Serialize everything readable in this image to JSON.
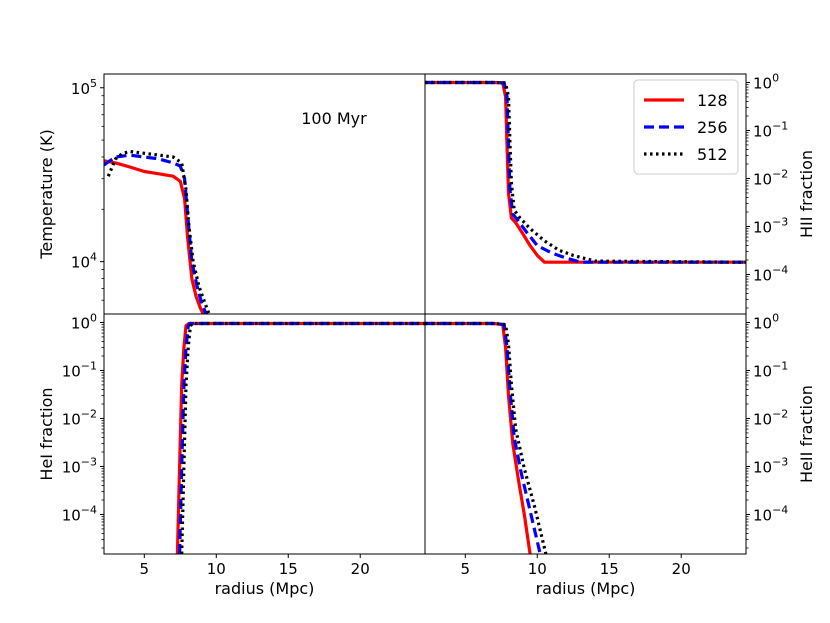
{
  "chart_data": [
    {
      "type": "line",
      "panel": "top-left",
      "ylabel": "Temperature (K)",
      "xlabel": "",
      "xlim": [
        2.2,
        24.5
      ],
      "ylim": [
        5000,
        120000
      ],
      "yscale": "log",
      "yticks": [
        {
          "v": 100000,
          "base": "10",
          "exp": "5"
        },
        {
          "v": 10000,
          "base": "10",
          "exp": "4"
        }
      ],
      "annotation": "100 Myr",
      "series": [
        {
          "name": "128",
          "x": [
            2.2,
            3.0,
            4.0,
            5.0,
            6.0,
            7.0,
            7.5,
            7.8,
            8.0,
            8.3,
            8.6,
            8.9,
            9.1
          ],
          "y": [
            38000,
            37000,
            35000,
            33000,
            32000,
            31000,
            29000,
            23000,
            14000,
            8000,
            6300,
            5400,
            5000
          ]
        },
        {
          "name": "256",
          "x": [
            2.2,
            3.0,
            4.0,
            5.0,
            6.0,
            7.0,
            7.5,
            7.8,
            8.0,
            8.3,
            8.7,
            9.0,
            9.3
          ],
          "y": [
            36000,
            40000,
            41000,
            40000,
            39000,
            37000,
            35500,
            30000,
            19000,
            10000,
            7000,
            5700,
            5000
          ]
        },
        {
          "name": "512",
          "x": [
            2.5,
            3.0,
            3.5,
            4.0,
            5.0,
            6.0,
            7.0,
            7.6,
            7.9,
            8.1,
            8.4,
            8.8,
            9.2,
            9.5
          ],
          "y": [
            31000,
            39000,
            42000,
            43000,
            42000,
            41000,
            40000,
            37000,
            26000,
            16000,
            10000,
            7200,
            5800,
            5000
          ]
        }
      ]
    },
    {
      "type": "line",
      "panel": "top-right",
      "ylabel": "HII fraction",
      "xlabel": "",
      "xlim": [
        2.2,
        24.5
      ],
      "ylim": [
        1.5e-05,
        1.5
      ],
      "yscale": "log",
      "yticks": [
        {
          "v": 1,
          "base": "10",
          "exp": "0"
        },
        {
          "v": 0.1,
          "base": "10",
          "exp": "−1"
        },
        {
          "v": 0.01,
          "base": "10",
          "exp": "−2"
        },
        {
          "v": 0.001,
          "base": "10",
          "exp": "−3"
        },
        {
          "v": 0.0001,
          "base": "10",
          "exp": "−4"
        }
      ],
      "legend_position": "top-right",
      "series": [
        {
          "name": "128",
          "x": [
            2.2,
            7.0,
            7.6,
            7.8,
            7.9,
            8.0,
            8.2,
            8.5,
            9.0,
            9.5,
            10.0,
            10.5,
            12,
            24.5
          ],
          "y": [
            1,
            1,
            0.98,
            0.5,
            0.05,
            0.005,
            0.0015,
            0.0012,
            0.0007,
            0.0004,
            0.00025,
            0.00018,
            0.00018,
            0.00018
          ]
        },
        {
          "name": "256",
          "x": [
            2.2,
            7.0,
            7.7,
            7.9,
            8.0,
            8.1,
            8.3,
            8.6,
            9.2,
            10.0,
            11.0,
            12.0,
            13.0,
            24.5
          ],
          "y": [
            1,
            1,
            0.98,
            0.5,
            0.05,
            0.006,
            0.0018,
            0.0014,
            0.0008,
            0.0004,
            0.00028,
            0.00022,
            0.00018,
            0.00018
          ]
        },
        {
          "name": "512",
          "x": [
            2.2,
            7.0,
            7.8,
            8.0,
            8.1,
            8.2,
            8.4,
            8.8,
            9.5,
            10.5,
            11.5,
            12.5,
            14.0,
            24.5
          ],
          "y": [
            1,
            1,
            0.98,
            0.5,
            0.06,
            0.008,
            0.0022,
            0.0015,
            0.0009,
            0.0005,
            0.00032,
            0.00025,
            0.00019,
            0.00018
          ]
        }
      ]
    },
    {
      "type": "line",
      "panel": "bottom-left",
      "ylabel": "HeI fraction",
      "xlabel": "radius (Mpc)",
      "xlim": [
        2.2,
        24.5
      ],
      "ylim": [
        1.5e-05,
        1.5
      ],
      "yscale": "log",
      "xticks": [
        5,
        10,
        15,
        20
      ],
      "yticks": [
        {
          "v": 1,
          "base": "10",
          "exp": "0"
        },
        {
          "v": 0.1,
          "base": "10",
          "exp": "−1"
        },
        {
          "v": 0.01,
          "base": "10",
          "exp": "−2"
        },
        {
          "v": 0.001,
          "base": "10",
          "exp": "−3"
        },
        {
          "v": 0.0001,
          "base": "10",
          "exp": "−4"
        }
      ],
      "series": [
        {
          "name": "128",
          "x": [
            7.3,
            7.45,
            7.6,
            7.75,
            7.9,
            8.1,
            9.0,
            24.5
          ],
          "y": [
            1.5e-05,
            0.001,
            0.05,
            0.3,
            0.85,
            0.95,
            0.95,
            0.95
          ]
        },
        {
          "name": "256",
          "x": [
            7.45,
            7.6,
            7.75,
            7.9,
            8.05,
            8.2,
            9.0,
            24.5
          ],
          "y": [
            1.5e-05,
            0.001,
            0.05,
            0.3,
            0.85,
            0.95,
            0.95,
            0.95
          ]
        },
        {
          "name": "512",
          "x": [
            7.6,
            7.75,
            7.9,
            8.05,
            8.2,
            8.35,
            9.0,
            24.5
          ],
          "y": [
            1.5e-05,
            0.001,
            0.05,
            0.3,
            0.85,
            0.95,
            0.95,
            0.95
          ]
        }
      ]
    },
    {
      "type": "line",
      "panel": "bottom-right",
      "ylabel": "HeII fraction",
      "xlabel": "radius (Mpc)",
      "xlim": [
        2.2,
        24.5
      ],
      "ylim": [
        1.5e-05,
        1.5
      ],
      "yscale": "log",
      "xticks": [
        5,
        10,
        15,
        20
      ],
      "yticks": [
        {
          "v": 1,
          "base": "10",
          "exp": "0"
        },
        {
          "v": 0.1,
          "base": "10",
          "exp": "−1"
        },
        {
          "v": 0.01,
          "base": "10",
          "exp": "−2"
        },
        {
          "v": 0.001,
          "base": "10",
          "exp": "−3"
        },
        {
          "v": 0.0001,
          "base": "10",
          "exp": "−4"
        }
      ],
      "series": [
        {
          "name": "128",
          "x": [
            2.2,
            7.0,
            7.6,
            7.8,
            8.0,
            8.3,
            8.7,
            9.1,
            9.5
          ],
          "y": [
            0.95,
            0.95,
            0.9,
            0.3,
            0.03,
            0.003,
            0.0005,
            0.0001,
            1.5e-05
          ]
        },
        {
          "name": "256",
          "x": [
            2.2,
            7.0,
            7.7,
            7.9,
            8.1,
            8.4,
            8.9,
            9.5,
            10.2
          ],
          "y": [
            0.95,
            0.95,
            0.9,
            0.3,
            0.04,
            0.004,
            0.0007,
            0.00012,
            1.5e-05
          ]
        },
        {
          "name": "512",
          "x": [
            2.2,
            7.0,
            7.8,
            8.0,
            8.2,
            8.5,
            9.1,
            9.8,
            10.6
          ],
          "y": [
            0.95,
            0.95,
            0.9,
            0.35,
            0.05,
            0.006,
            0.0009,
            0.00015,
            1.5e-05
          ]
        }
      ]
    }
  ],
  "legend": {
    "position": "top-right",
    "entries": [
      {
        "label": "128",
        "color": "#ff0000",
        "style": "solid"
      },
      {
        "label": "256",
        "color": "#0000ff",
        "style": "dashed"
      },
      {
        "label": "512",
        "color": "#000000",
        "style": "dotted"
      }
    ]
  }
}
